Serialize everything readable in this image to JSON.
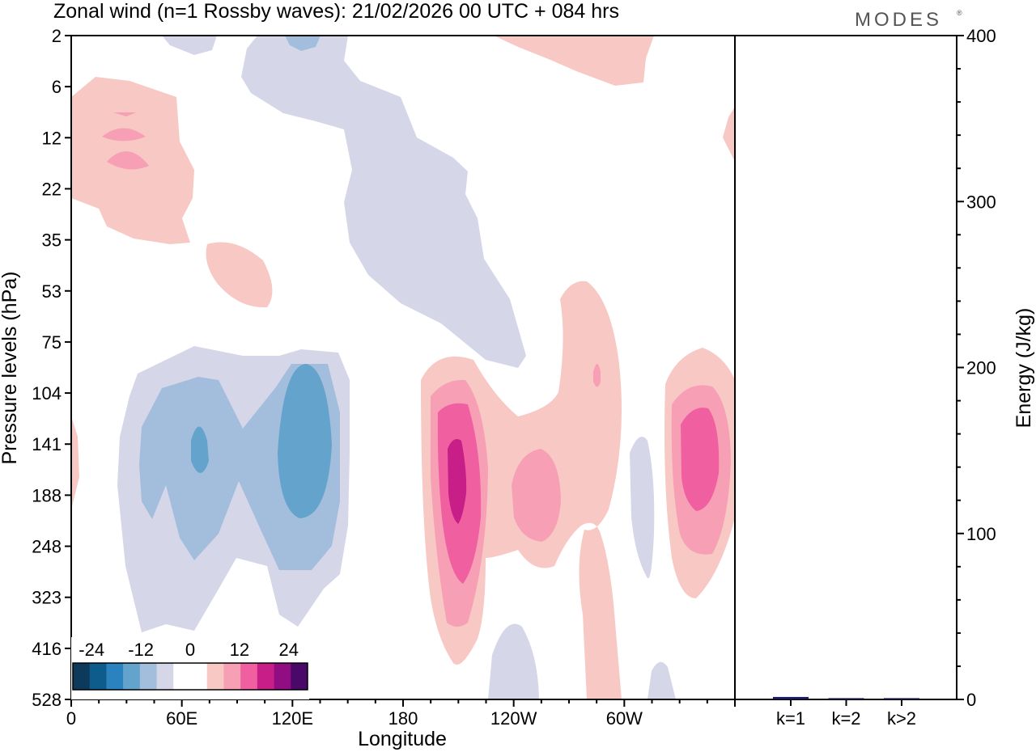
{
  "title": "Zonal wind (n=1 Rossby waves):  21/02/2026  00 UTC  + 084 hrs",
  "logo": "MODES",
  "logo_mark": "®",
  "chart_data": [
    {
      "type": "heatmap",
      "title": "Zonal wind (n=1 Rossby waves):  21/02/2026  00 UTC  + 084 hrs",
      "xlabel": "Longitude",
      "ylabel": "Pressure levels (hPa)",
      "x_ticks": [
        {
          "lon": 0,
          "label": "0"
        },
        {
          "lon": 60,
          "label": "60E"
        },
        {
          "lon": 120,
          "label": "120E"
        },
        {
          "lon": 180,
          "label": "180"
        },
        {
          "lon": 240,
          "label": "120W"
        },
        {
          "lon": 300,
          "label": "60W"
        }
      ],
      "xlim": [
        0,
        360
      ],
      "y_levels": [
        "2",
        "6",
        "12",
        "22",
        "35",
        "53",
        "75",
        "104",
        "141",
        "188",
        "248",
        "323",
        "416",
        "528"
      ],
      "colorbar": {
        "labels": [
          "-24",
          "-12",
          "0",
          "12",
          "24"
        ],
        "colors": [
          "#0d3a5a",
          "#0e5c8c",
          "#2a82be",
          "#64a3cc",
          "#a3bddc",
          "#d5d6e8",
          "#ffffff",
          "#ffffff",
          "#f8c8c4",
          "#f79fb5",
          "#f060a0",
          "#c71e88",
          "#900e82",
          "#4a0868"
        ]
      },
      "contours": [
        {
          "name": "pos-tropo-main",
          "level": 3,
          "lon_range": [
            188,
            212
          ],
          "pressure_range": [
            75,
            416
          ]
        },
        {
          "name": "pos-tropo-core",
          "level": 12,
          "lon_range": [
            197,
            203
          ],
          "pressure_range": [
            141,
            248
          ]
        },
        {
          "name": "pos-east",
          "level": 9,
          "lon_range": [
            326,
            344
          ],
          "pressure_range": [
            104,
            248
          ]
        },
        {
          "name": "neg-tropo-main",
          "level": -9,
          "lon_range": [
            36,
            146
          ],
          "pressure_range": [
            75,
            416
          ]
        },
        {
          "name": "neg-tropo-core",
          "level": -12,
          "lon_range": [
            112,
            140
          ],
          "pressure_range": [
            104,
            248
          ]
        },
        {
          "name": "neg-strato",
          "level": -3,
          "lon_range": [
            93,
            250
          ],
          "pressure_range": [
            2,
            75
          ]
        },
        {
          "name": "pos-strato-west",
          "level": 6,
          "lon_range": [
            0,
            66
          ],
          "pressure_range": [
            6,
            35
          ]
        }
      ]
    },
    {
      "type": "bar",
      "categories": [
        "k=1",
        "k=2",
        "k>2"
      ],
      "values": [
        1.5,
        0.8,
        0.8
      ],
      "ylabel": "Energy (J/kg)",
      "ylim": [
        0,
        400
      ],
      "y_ticks": [
        "0",
        "100",
        "200",
        "300",
        "400"
      ],
      "bar_color": "#1a1a5e"
    }
  ]
}
